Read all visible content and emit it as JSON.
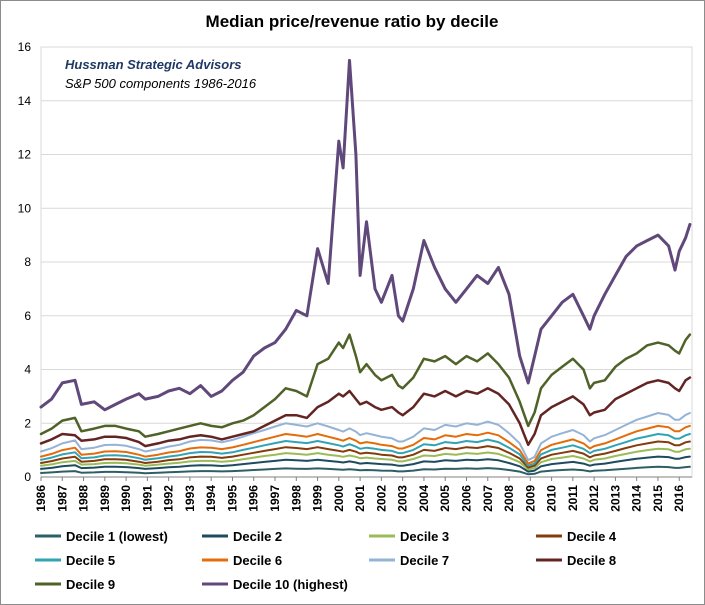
{
  "chart_data": {
    "type": "line",
    "title": "Median price/revenue ratio by decile",
    "annotation_line1": "Hussman Strategic Advisors",
    "annotation_line2": "S&P 500 components 1986-2016",
    "xlabel": "",
    "ylabel": "",
    "ylim": [
      0,
      16
    ],
    "yticks": [
      "0",
      "2",
      "4",
      "6",
      "8",
      "10",
      "12",
      "14",
      "16"
    ],
    "xticks": [
      "1986",
      "1987",
      "1988",
      "1989",
      "1990",
      "1991",
      "1992",
      "1993",
      "1994",
      "1995",
      "1996",
      "1997",
      "1998",
      "1999",
      "2000",
      "2001",
      "2002",
      "2003",
      "2004",
      "2005",
      "2006",
      "2007",
      "2008",
      "2009",
      "2010",
      "2011",
      "2012",
      "2013",
      "2014",
      "2015",
      "2016"
    ],
    "grid": "horizontal",
    "legend_position": "bottom",
    "x": [
      1986.0,
      1986.5,
      1987.0,
      1987.6,
      1987.9,
      1988.5,
      1989.0,
      1989.5,
      1990.0,
      1990.6,
      1990.9,
      1991.5,
      1992.0,
      1992.5,
      1993.0,
      1993.5,
      1994.0,
      1994.5,
      1995.0,
      1995.5,
      1996.0,
      1996.5,
      1997.0,
      1997.5,
      1998.0,
      1998.5,
      1999.0,
      1999.5,
      2000.0,
      2000.2,
      2000.5,
      2000.8,
      2001.0,
      2001.3,
      2001.7,
      2002.0,
      2002.5,
      2002.8,
      2003.0,
      2003.5,
      2004.0,
      2004.5,
      2005.0,
      2005.5,
      2006.0,
      2006.5,
      2007.0,
      2007.5,
      2008.0,
      2008.5,
      2008.9,
      2009.2,
      2009.5,
      2010.0,
      2010.5,
      2011.0,
      2011.5,
      2011.8,
      2012.0,
      2012.5,
      2013.0,
      2013.5,
      2014.0,
      2014.5,
      2015.0,
      2015.5,
      2015.8,
      2016.0,
      2016.3,
      2016.5
    ],
    "series": [
      {
        "name": "Decile 1 (lowest)",
        "color": "#2e5f66",
        "width": 2,
        "values": [
          0.15,
          0.17,
          0.2,
          0.22,
          0.16,
          0.17,
          0.19,
          0.19,
          0.18,
          0.16,
          0.14,
          0.16,
          0.18,
          0.19,
          0.21,
          0.22,
          0.22,
          0.21,
          0.22,
          0.24,
          0.26,
          0.28,
          0.3,
          0.32,
          0.31,
          0.3,
          0.32,
          0.3,
          0.28,
          0.27,
          0.29,
          0.27,
          0.25,
          0.26,
          0.25,
          0.24,
          0.23,
          0.21,
          0.21,
          0.24,
          0.29,
          0.28,
          0.31,
          0.3,
          0.32,
          0.31,
          0.33,
          0.31,
          0.26,
          0.2,
          0.1,
          0.12,
          0.2,
          0.24,
          0.26,
          0.28,
          0.25,
          0.21,
          0.23,
          0.25,
          0.28,
          0.31,
          0.34,
          0.36,
          0.38,
          0.37,
          0.34,
          0.34,
          0.37,
          0.38
        ]
      },
      {
        "name": "Decile 2",
        "color": "#1e4b5f",
        "width": 2,
        "values": [
          0.3,
          0.34,
          0.4,
          0.44,
          0.33,
          0.35,
          0.38,
          0.38,
          0.37,
          0.33,
          0.3,
          0.33,
          0.36,
          0.38,
          0.42,
          0.44,
          0.43,
          0.41,
          0.44,
          0.48,
          0.52,
          0.56,
          0.6,
          0.64,
          0.62,
          0.6,
          0.64,
          0.6,
          0.56,
          0.54,
          0.58,
          0.54,
          0.5,
          0.52,
          0.5,
          0.48,
          0.46,
          0.42,
          0.42,
          0.48,
          0.58,
          0.56,
          0.62,
          0.6,
          0.64,
          0.62,
          0.66,
          0.62,
          0.52,
          0.4,
          0.2,
          0.24,
          0.4,
          0.48,
          0.52,
          0.56,
          0.5,
          0.42,
          0.46,
          0.5,
          0.56,
          0.62,
          0.68,
          0.72,
          0.76,
          0.74,
          0.68,
          0.68,
          0.74,
          0.76
        ]
      },
      {
        "name": "Decile 3",
        "color": "#9bbb59",
        "width": 2,
        "values": [
          0.42,
          0.47,
          0.55,
          0.6,
          0.46,
          0.48,
          0.52,
          0.53,
          0.51,
          0.46,
          0.42,
          0.46,
          0.5,
          0.53,
          0.58,
          0.6,
          0.6,
          0.57,
          0.6,
          0.66,
          0.72,
          0.78,
          0.83,
          0.89,
          0.86,
          0.83,
          0.89,
          0.83,
          0.78,
          0.75,
          0.8,
          0.75,
          0.7,
          0.72,
          0.69,
          0.67,
          0.64,
          0.58,
          0.58,
          0.67,
          0.8,
          0.78,
          0.86,
          0.83,
          0.89,
          0.86,
          0.91,
          0.86,
          0.72,
          0.55,
          0.28,
          0.33,
          0.55,
          0.67,
          0.72,
          0.78,
          0.69,
          0.58,
          0.64,
          0.69,
          0.78,
          0.86,
          0.94,
          1.0,
          1.05,
          1.03,
          0.94,
          0.94,
          1.03,
          1.05
        ]
      },
      {
        "name": "Decile 4",
        "color": "#843c0c",
        "width": 2,
        "values": [
          0.52,
          0.59,
          0.69,
          0.75,
          0.57,
          0.6,
          0.66,
          0.66,
          0.64,
          0.57,
          0.52,
          0.57,
          0.63,
          0.66,
          0.73,
          0.76,
          0.75,
          0.71,
          0.76,
          0.83,
          0.9,
          0.97,
          1.04,
          1.11,
          1.08,
          1.04,
          1.11,
          1.04,
          0.97,
          0.94,
          1.01,
          0.94,
          0.87,
          0.9,
          0.87,
          0.83,
          0.8,
          0.73,
          0.73,
          0.83,
          1.01,
          0.97,
          1.08,
          1.04,
          1.11,
          1.08,
          1.15,
          1.08,
          0.9,
          0.69,
          0.35,
          0.42,
          0.69,
          0.83,
          0.9,
          0.97,
          0.87,
          0.73,
          0.8,
          0.87,
          0.97,
          1.08,
          1.18,
          1.25,
          1.32,
          1.29,
          1.18,
          1.18,
          1.29,
          1.32
        ]
      },
      {
        "name": "Decile 5",
        "color": "#31a3b5",
        "width": 2,
        "values": [
          0.64,
          0.72,
          0.84,
          0.92,
          0.7,
          0.73,
          0.8,
          0.81,
          0.78,
          0.7,
          0.64,
          0.7,
          0.76,
          0.81,
          0.89,
          0.93,
          0.92,
          0.87,
          0.92,
          1.01,
          1.09,
          1.18,
          1.26,
          1.34,
          1.3,
          1.26,
          1.34,
          1.26,
          1.18,
          1.13,
          1.22,
          1.13,
          1.05,
          1.09,
          1.05,
          1.01,
          0.97,
          0.89,
          0.89,
          1.01,
          1.22,
          1.18,
          1.3,
          1.26,
          1.34,
          1.3,
          1.39,
          1.3,
          1.09,
          0.84,
          0.42,
          0.5,
          0.84,
          1.01,
          1.09,
          1.18,
          1.05,
          0.89,
          0.97,
          1.05,
          1.18,
          1.3,
          1.43,
          1.51,
          1.6,
          1.55,
          1.43,
          1.43,
          1.55,
          1.6
        ]
      },
      {
        "name": "Decile 6",
        "color": "#e46c0a",
        "width": 2,
        "values": [
          0.76,
          0.86,
          1.0,
          1.09,
          0.83,
          0.87,
          0.95,
          0.96,
          0.93,
          0.83,
          0.76,
          0.83,
          0.91,
          0.96,
          1.06,
          1.1,
          1.09,
          1.04,
          1.1,
          1.2,
          1.3,
          1.4,
          1.5,
          1.6,
          1.55,
          1.5,
          1.6,
          1.5,
          1.4,
          1.35,
          1.45,
          1.35,
          1.25,
          1.3,
          1.25,
          1.2,
          1.15,
          1.06,
          1.06,
          1.2,
          1.45,
          1.4,
          1.55,
          1.5,
          1.6,
          1.55,
          1.65,
          1.55,
          1.3,
          1.0,
          0.5,
          0.6,
          1.0,
          1.2,
          1.3,
          1.4,
          1.25,
          1.06,
          1.15,
          1.25,
          1.4,
          1.55,
          1.7,
          1.8,
          1.9,
          1.85,
          1.7,
          1.7,
          1.85,
          1.9
        ]
      },
      {
        "name": "Decile 7",
        "color": "#95b3d7",
        "width": 2,
        "values": [
          0.95,
          1.07,
          1.25,
          1.36,
          1.04,
          1.09,
          1.19,
          1.2,
          1.16,
          1.04,
          0.95,
          1.04,
          1.13,
          1.2,
          1.32,
          1.38,
          1.36,
          1.29,
          1.38,
          1.5,
          1.63,
          1.75,
          1.88,
          2.0,
          1.94,
          1.88,
          2.0,
          1.88,
          1.75,
          1.69,
          1.81,
          1.69,
          1.56,
          1.63,
          1.56,
          1.5,
          1.44,
          1.32,
          1.32,
          1.5,
          1.81,
          1.75,
          1.94,
          1.88,
          2.0,
          1.94,
          2.06,
          1.94,
          1.63,
          1.25,
          0.63,
          0.75,
          1.25,
          1.5,
          1.63,
          1.75,
          1.56,
          1.32,
          1.44,
          1.56,
          1.75,
          1.94,
          2.13,
          2.25,
          2.38,
          2.31,
          2.13,
          2.13,
          2.31,
          2.38
        ]
      },
      {
        "name": "Decile 8",
        "color": "#632523",
        "width": 2.5,
        "values": [
          1.25,
          1.4,
          1.6,
          1.55,
          1.35,
          1.4,
          1.5,
          1.5,
          1.45,
          1.3,
          1.15,
          1.25,
          1.35,
          1.4,
          1.5,
          1.55,
          1.5,
          1.4,
          1.5,
          1.6,
          1.7,
          1.9,
          2.1,
          2.3,
          2.3,
          2.2,
          2.6,
          2.8,
          3.1,
          3.0,
          3.2,
          2.9,
          2.7,
          2.8,
          2.6,
          2.5,
          2.6,
          2.4,
          2.3,
          2.6,
          3.1,
          3.0,
          3.2,
          3.0,
          3.2,
          3.1,
          3.3,
          3.1,
          2.7,
          2.0,
          1.2,
          1.6,
          2.3,
          2.6,
          2.8,
          3.0,
          2.7,
          2.3,
          2.4,
          2.5,
          2.9,
          3.1,
          3.3,
          3.5,
          3.6,
          3.5,
          3.3,
          3.2,
          3.6,
          3.7
        ]
      },
      {
        "name": "Decile 9",
        "color": "#4f6228",
        "width": 2.5,
        "values": [
          1.6,
          1.8,
          2.1,
          2.2,
          1.7,
          1.8,
          1.9,
          1.9,
          1.8,
          1.7,
          1.5,
          1.6,
          1.7,
          1.8,
          1.9,
          2.0,
          1.9,
          1.85,
          2.0,
          2.1,
          2.3,
          2.6,
          2.9,
          3.3,
          3.2,
          3.0,
          4.2,
          4.4,
          5.0,
          4.8,
          5.3,
          4.5,
          3.9,
          4.2,
          3.8,
          3.6,
          3.8,
          3.4,
          3.3,
          3.7,
          4.4,
          4.3,
          4.5,
          4.2,
          4.5,
          4.3,
          4.6,
          4.2,
          3.7,
          2.8,
          1.9,
          2.4,
          3.3,
          3.8,
          4.1,
          4.4,
          4.0,
          3.3,
          3.5,
          3.6,
          4.1,
          4.4,
          4.6,
          4.9,
          5.0,
          4.9,
          4.7,
          4.6,
          5.1,
          5.3
        ]
      },
      {
        "name": "Decile 10 (highest)",
        "color": "#60497a",
        "width": 3,
        "values": [
          2.6,
          2.9,
          3.5,
          3.6,
          2.7,
          2.8,
          2.5,
          2.7,
          2.9,
          3.1,
          2.9,
          3.0,
          3.2,
          3.3,
          3.1,
          3.4,
          3.0,
          3.2,
          3.6,
          3.9,
          4.5,
          4.8,
          5.0,
          5.5,
          6.2,
          6.0,
          8.5,
          7.2,
          12.5,
          11.5,
          15.5,
          12.0,
          7.5,
          9.5,
          7.0,
          6.5,
          7.5,
          6.0,
          5.8,
          7.0,
          8.8,
          7.8,
          7.0,
          6.5,
          7.0,
          7.5,
          7.2,
          7.8,
          6.8,
          4.5,
          3.5,
          4.5,
          5.5,
          6.0,
          6.5,
          6.8,
          6.0,
          5.5,
          6.0,
          6.8,
          7.5,
          8.2,
          8.6,
          8.8,
          9.0,
          8.6,
          7.7,
          8.4,
          8.9,
          9.4
        ]
      }
    ]
  }
}
